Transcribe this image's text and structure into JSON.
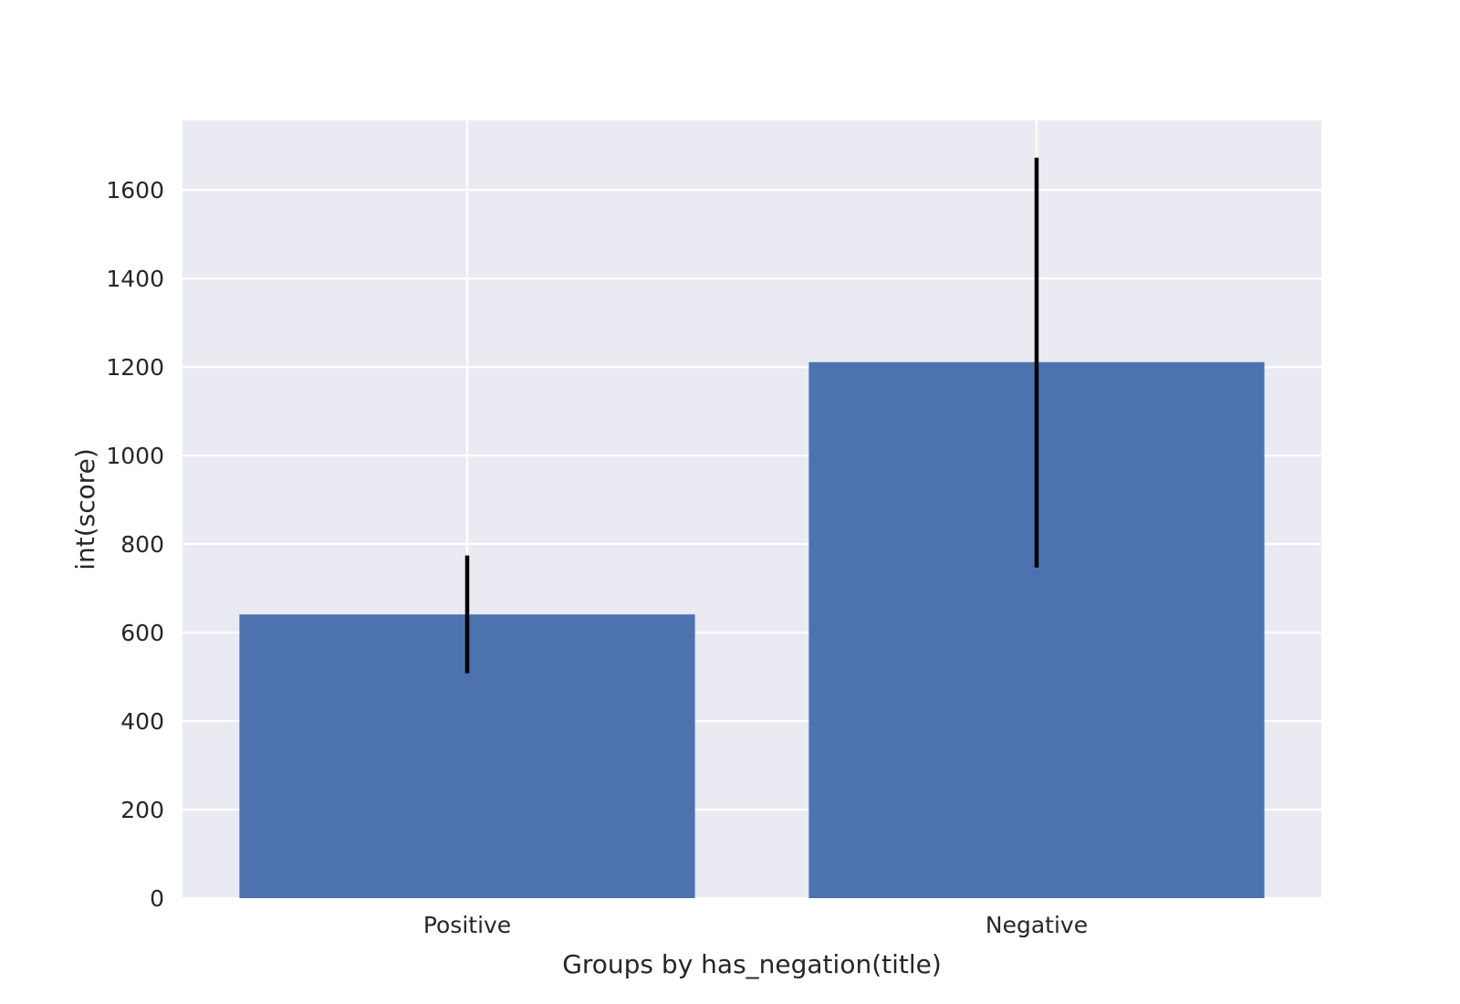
{
  "chart_data": {
    "type": "bar",
    "title": "",
    "xlabel": "Groups by has_negation(title)",
    "ylabel": "int(score)",
    "categories": [
      "Positive",
      "Negative"
    ],
    "values": [
      641,
      1211
    ],
    "error_bars": [
      {
        "low": 508,
        "high": 774
      },
      {
        "low": 747,
        "high": 1673
      }
    ],
    "yticks": [
      0,
      200,
      400,
      600,
      800,
      1000,
      1200,
      1400,
      1600
    ],
    "ylim": [
      0,
      1757
    ],
    "grid": true,
    "colors": {
      "bar": "#4c72b0",
      "error_bar": "#000000",
      "plot_background": "#eaeaf2",
      "grid": "#ffffff",
      "text": "#262626"
    }
  }
}
